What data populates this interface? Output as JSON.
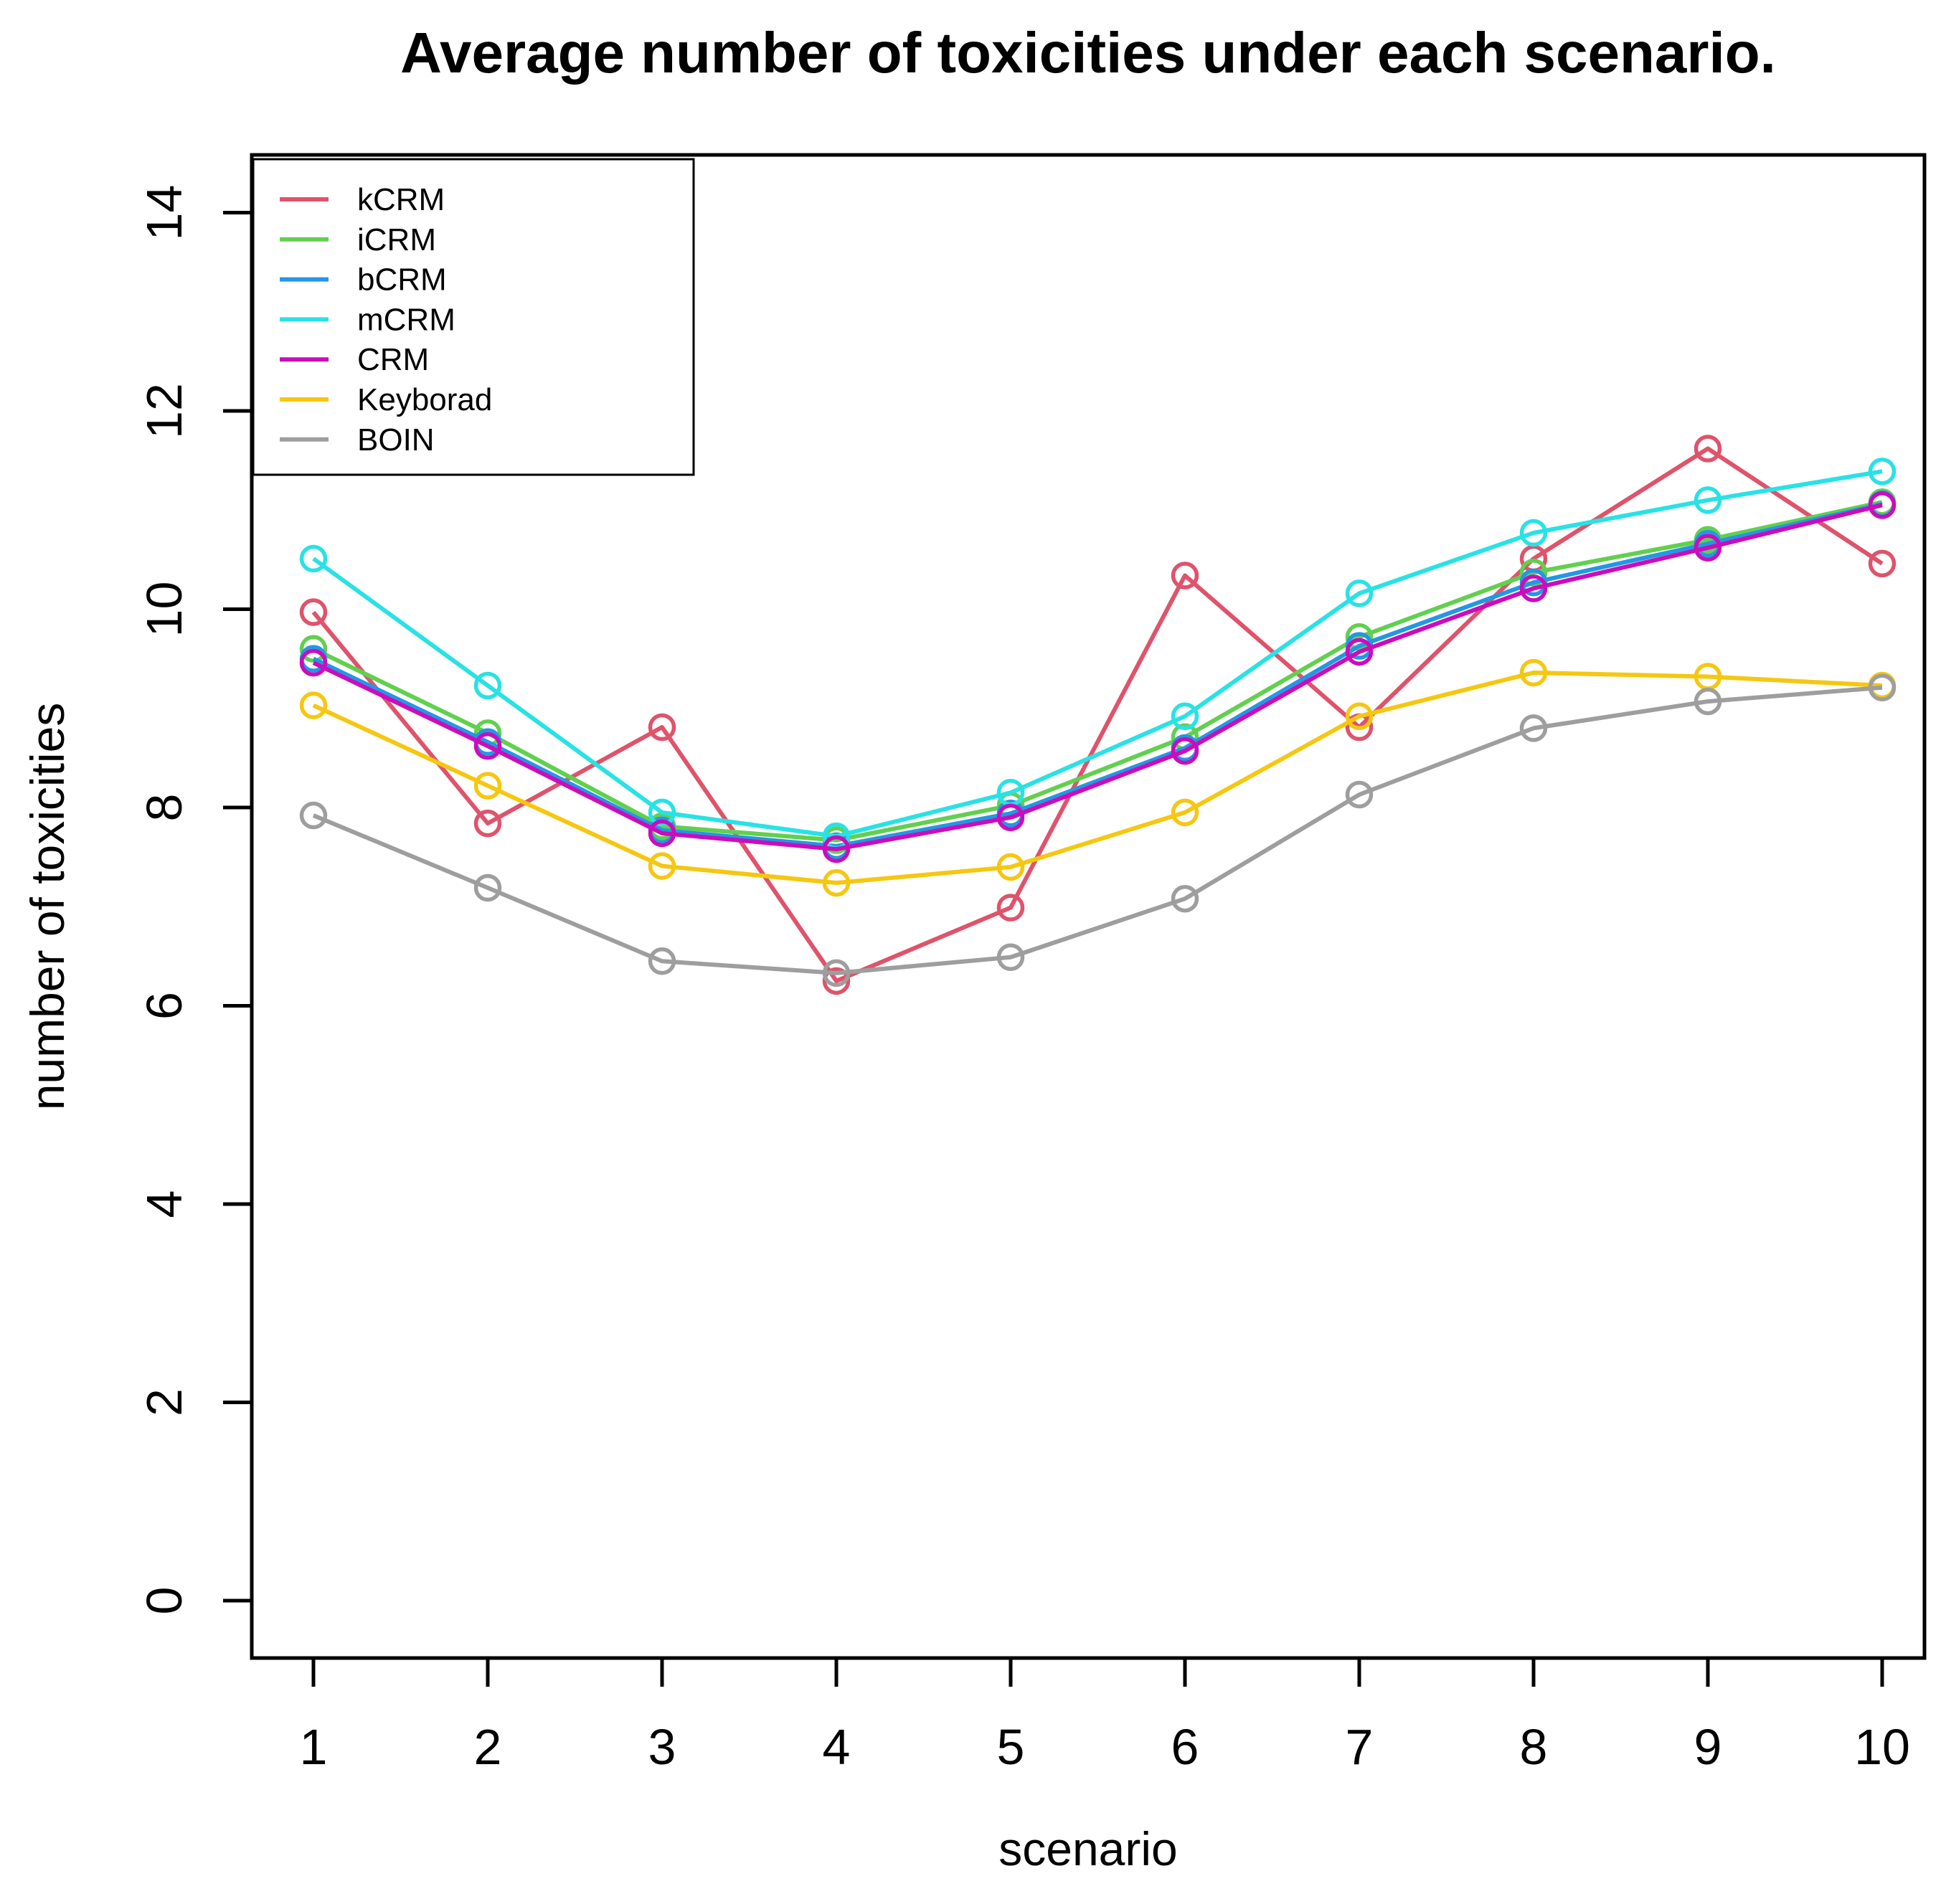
{
  "chart_data": {
    "type": "line",
    "title": "Average number of toxicities under each scenario.",
    "xlabel": "scenario",
    "ylabel": "number of toxicities",
    "x": [
      1,
      2,
      3,
      4,
      5,
      6,
      7,
      8,
      9,
      10
    ],
    "xticks": [
      1,
      2,
      3,
      4,
      5,
      6,
      7,
      8,
      9,
      10
    ],
    "yticks": [
      0,
      2,
      4,
      6,
      8,
      10,
      12,
      14
    ],
    "ylim": [
      0,
      14
    ],
    "grid": false,
    "marker": "open-circle",
    "legend_position": "top-left",
    "series": [
      {
        "name": "kCRM",
        "color": "#DF536B",
        "values": [
          9.97,
          7.84,
          8.81,
          6.25,
          6.99,
          10.34,
          8.81,
          10.51,
          11.62,
          10.46
        ]
      },
      {
        "name": "iCRM",
        "color": "#61D04F",
        "values": [
          9.6,
          8.75,
          7.81,
          7.67,
          8.02,
          8.71,
          9.72,
          10.37,
          10.7,
          11.08
        ]
      },
      {
        "name": "bCRM",
        "color": "#2297E6",
        "values": [
          9.5,
          8.66,
          7.77,
          7.61,
          7.94,
          8.6,
          9.63,
          10.27,
          10.66,
          11.06
        ]
      },
      {
        "name": "mCRM",
        "color": "#28E2E5",
        "values": [
          10.51,
          9.23,
          7.95,
          7.71,
          8.15,
          8.92,
          10.16,
          10.77,
          11.1,
          11.39
        ]
      },
      {
        "name": "CRM",
        "color": "#CD0BBC",
        "values": [
          9.46,
          8.62,
          7.74,
          7.58,
          7.9,
          8.57,
          9.57,
          10.21,
          10.62,
          11.05
        ]
      },
      {
        "name": "Keyborad",
        "color": "#F5C710",
        "values": [
          9.03,
          8.22,
          7.41,
          7.24,
          7.4,
          7.95,
          8.92,
          9.36,
          9.32,
          9.23
        ]
      },
      {
        "name": "BOIN",
        "color": "#9E9E9E",
        "values": [
          7.92,
          7.19,
          6.45,
          6.33,
          6.49,
          7.08,
          8.13,
          8.8,
          9.07,
          9.21
        ]
      }
    ]
  }
}
